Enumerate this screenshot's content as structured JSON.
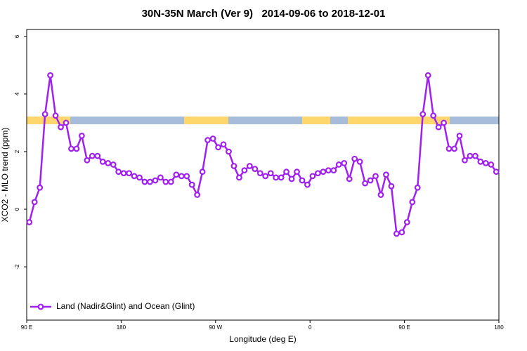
{
  "chart_data": {
    "type": "line",
    "title": "30N-35N March (Ver 9)   2014-09-06 to 2018-12-01",
    "x_label": "Longitude (deg E)",
    "y_label": "XCO2 - MLO trend (ppm)",
    "x": [
      92.5,
      97.5,
      102.5,
      107.5,
      112.5,
      117.5,
      122.5,
      127.5,
      132.5,
      137.5,
      142.5,
      147.5,
      152.5,
      157.5,
      162.5,
      167.5,
      172.5,
      177.5,
      182.5,
      187.5,
      192.5,
      197.5,
      202.5,
      207.5,
      212.5,
      217.5,
      222.5,
      227.5,
      232.5,
      237.5,
      242.5,
      247.5,
      252.5,
      257.5,
      262.5,
      267.5,
      272.5,
      277.5,
      282.5,
      287.5,
      292.5,
      297.5,
      302.5,
      307.5,
      312.5,
      317.5,
      322.5,
      327.5,
      332.5,
      337.5,
      342.5,
      347.5,
      352.5,
      357.5,
      362.5,
      367.5,
      372.5,
      377.5,
      382.5,
      387.5,
      392.5,
      397.5,
      402.5,
      407.5,
      412.5,
      417.5,
      422.5,
      427.5,
      432.5,
      437.5,
      442.5,
      447.5,
      452.5,
      457.5,
      462.5,
      467.5,
      472.5,
      477.5,
      482.5,
      487.5,
      492.5,
      497.5,
      502.5,
      507.5,
      512.5,
      517.5,
      522.5,
      527.5,
      532.5,
      537.5
    ],
    "series": [
      {
        "name": "Land (Nadir&Glint) and Ocean (Glint)",
        "color": "#a020f0",
        "values": [
          -0.45,
          0.25,
          0.75,
          3.3,
          4.65,
          3.25,
          2.85,
          3.0,
          2.1,
          2.1,
          2.55,
          1.7,
          1.85,
          1.85,
          1.65,
          1.6,
          1.55,
          1.3,
          1.25,
          1.25,
          1.15,
          1.1,
          0.95,
          0.95,
          1.0,
          1.1,
          0.95,
          0.95,
          1.2,
          1.15,
          1.15,
          0.85,
          0.5,
          1.3,
          2.4,
          2.45,
          2.15,
          2.25,
          2.0,
          1.5,
          1.1,
          1.35,
          1.5,
          1.4,
          1.25,
          1.15,
          1.25,
          1.1,
          1.1,
          1.3,
          1.05,
          1.3,
          1.0,
          0.85,
          1.15,
          1.25,
          1.3,
          1.35,
          1.35,
          1.55,
          1.6,
          1.05,
          1.75,
          1.65,
          0.9,
          1.0,
          1.15,
          0.5,
          1.2,
          0.8,
          -0.85,
          -0.8,
          -0.45,
          0.25,
          0.75,
          3.3,
          4.65,
          3.25,
          2.85,
          3.0,
          2.1,
          2.1,
          2.55,
          1.7,
          1.85,
          1.85,
          1.65,
          1.6,
          1.55,
          1.3
        ]
      }
    ],
    "xlim": [
      90,
      540
    ],
    "xticks": [
      {
        "value": 90,
        "label": "90 E"
      },
      {
        "value": 180,
        "label": "180"
      },
      {
        "value": 270,
        "label": "90 W"
      },
      {
        "value": 360,
        "label": "0"
      },
      {
        "value": 450,
        "label": "90 E"
      },
      {
        "value": 540,
        "label": "180"
      }
    ],
    "ylim": [
      -3.85,
      6.24
    ],
    "yticks": [
      -2,
      0,
      2,
      4,
      6
    ],
    "legend": "bottom-left"
  }
}
